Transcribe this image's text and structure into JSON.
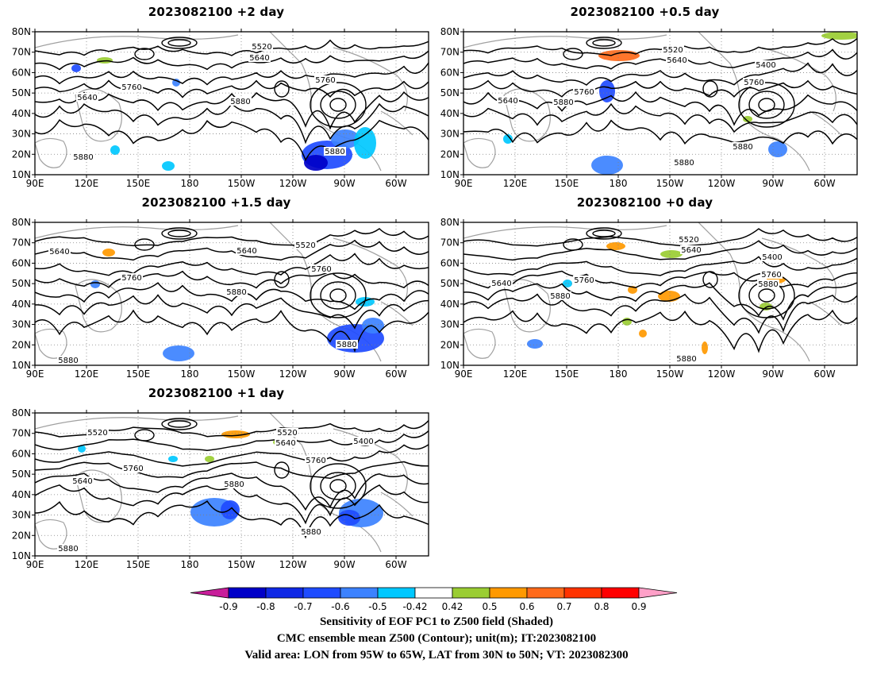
{
  "panels": [
    {
      "title": "2023082100 +2 day"
    },
    {
      "title": "2023082100 +0.5 day"
    },
    {
      "title": "2023082100 +1.5 day"
    },
    {
      "title": "2023082100 +0 day"
    },
    {
      "title": "2023082100 +1 day"
    }
  ],
  "axes": {
    "lon_ticks": [
      "90E",
      "120E",
      "150E",
      "180",
      "150W",
      "120W",
      "90W",
      "60W"
    ],
    "lat_ticks": [
      "10N",
      "20N",
      "30N",
      "40N",
      "50N",
      "60N",
      "70N",
      "80N"
    ]
  },
  "contour_labels": [
    "5400",
    "5520",
    "5640",
    "5760",
    "5880"
  ],
  "colorbar": {
    "ticks": [
      "-0.9",
      "-0.8",
      "-0.7",
      "-0.6",
      "-0.5",
      "-0.42",
      "0.42",
      "0.5",
      "0.6",
      "0.7",
      "0.8",
      "0.9"
    ],
    "colors": [
      "#0000c8",
      "#0f28e6",
      "#1e4bff",
      "#3c82ff",
      "#00c8ff",
      "#ffffff",
      "#9acd32",
      "#ff9900",
      "#ff6a1a",
      "#ff3300",
      "#ff0000"
    ],
    "under_color": "#c81e9a",
    "over_color": "#ffa0c8"
  },
  "caption": {
    "line1": "Sensitivity of EOF PC1 to Z500 field (Shaded)",
    "line2": "CMC ensemble mean Z500 (Contour); unit(m); IT:2023082100",
    "line3": "Valid area: LON from 95W to 65W, LAT from 30N to 50N; VT: 2023082300"
  }
}
